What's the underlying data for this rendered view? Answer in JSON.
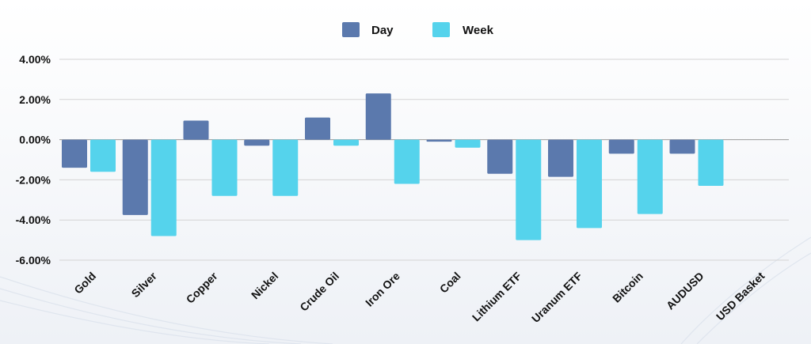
{
  "chart_data": {
    "type": "bar",
    "categories": [
      "Gold",
      "Silver",
      "Copper",
      "Nickel",
      "Crude Oil",
      "Iron Ore",
      "Coal",
      "Lithium ETF",
      "Uranum ETF",
      "Bitcoin",
      "AUDUSD",
      "USD Basket"
    ],
    "series": [
      {
        "name": "Day",
        "color": "#5b79ad",
        "values": [
          -1.4,
          -3.75,
          0.95,
          -0.3,
          1.1,
          2.3,
          -0.1,
          -1.7,
          -1.85,
          -0.7,
          -0.7,
          0.0
        ]
      },
      {
        "name": "Week",
        "color": "#55d3ec",
        "values": [
          -1.6,
          -4.8,
          -2.8,
          -2.8,
          -0.3,
          -2.2,
          -0.4,
          -5.0,
          -4.4,
          -3.7,
          -2.3,
          0.0
        ]
      }
    ],
    "y_ticks": [
      "4.00%",
      "2.00%",
      "0.00%",
      "-2.00%",
      "-4.00%",
      "-6.00%"
    ],
    "y_tick_values": [
      4,
      2,
      0,
      -2,
      -4,
      -6
    ],
    "ylim": [
      -6,
      4
    ],
    "grid": true,
    "legend_position": "top-center",
    "title": "",
    "xlabel": "",
    "ylabel": ""
  }
}
